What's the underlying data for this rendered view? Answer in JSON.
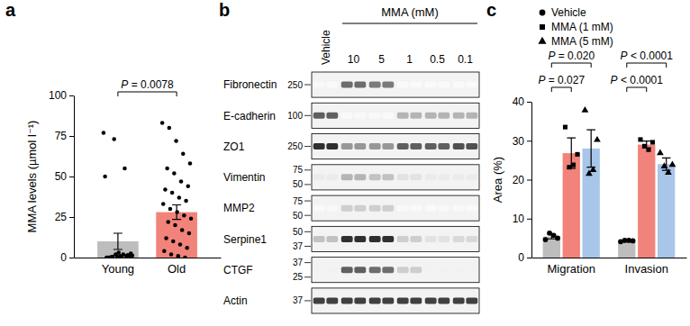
{
  "chart_data": [
    {
      "type": "bar",
      "title": "a",
      "ylabel": "MMA levels (µmol l⁻¹)",
      "categories": [
        "Young",
        "Old"
      ],
      "values": [
        10,
        28
      ],
      "errors": [
        5,
        4.5
      ],
      "colors": [
        "#bdbdbd",
        "#f1837a"
      ],
      "marker": "circle",
      "points": [
        [
          77,
          73,
          55,
          50,
          2,
          1,
          0,
          0.5,
          1.5,
          0,
          3,
          0.8,
          0,
          1,
          2.5,
          0.3,
          0,
          1.2,
          0.6,
          2
        ],
        [
          83,
          80,
          72,
          64,
          58,
          55,
          52,
          47,
          44,
          42,
          40,
          37,
          35,
          33,
          30,
          28,
          26,
          24,
          22,
          20,
          17,
          15,
          12,
          10,
          8,
          6,
          4,
          2,
          1,
          0
        ]
      ],
      "ylim": [
        0,
        100
      ],
      "yticks": [
        0,
        25,
        50,
        75,
        100
      ],
      "annotations": [
        {
          "text": "P = 0.0078",
          "from": "Young",
          "to": "Old"
        }
      ]
    },
    {
      "type": "bar",
      "title": "c",
      "ylabel": "Area (%)",
      "categories": [
        "Migration",
        "Invasion"
      ],
      "series": [
        {
          "name": "Vehicle",
          "color": "#bdbdbd",
          "marker": "circle",
          "values": [
            5.4,
            4.3
          ],
          "errors": [
            0.6,
            0.15
          ],
          "points": [
            [
              4.6,
              5.0,
              5.7,
              6.3
            ],
            [
              4.1,
              4.3,
              4.4,
              4.4
            ]
          ]
        },
        {
          "name": "MMA (1 mM)",
          "color": "#f1837a",
          "marker": "square",
          "values": [
            26.8,
            29
          ],
          "errors": [
            3.9,
            0.9
          ],
          "points": [
            [
              33.5,
              26.5,
              23.8,
              23.2
            ],
            [
              30.3,
              29.6,
              27.7,
              28.6
            ]
          ]
        },
        {
          "name": "MMA (5 mM)",
          "color": "#a8c5ea",
          "marker": "triangle",
          "values": [
            28,
            24
          ],
          "errors": [
            4.8,
            1.6
          ],
          "points": [
            [
              37.8,
              30.2,
              22.5,
              21.5
            ],
            [
              26.8,
              23.8,
              21.8,
              23.4
            ]
          ]
        }
      ],
      "ylim": [
        0,
        40
      ],
      "yticks": [
        0,
        10,
        20,
        30,
        40
      ],
      "legend": "upper left",
      "annotations": [
        {
          "text": "P = 0.027",
          "category": "Migration",
          "from": "Vehicle",
          "to": "MMA (1 mM)"
        },
        {
          "text": "P = 0.020",
          "category": "Migration",
          "from": "Vehicle",
          "to": "MMA (5 mM)"
        },
        {
          "text": "P < 0.0001",
          "category": "Invasion",
          "from": "Vehicle",
          "to": "MMA (1 mM)"
        },
        {
          "text": "P < 0.0001",
          "category": "Invasion",
          "from": "Vehicle",
          "to": "MMA (5 mM)"
        }
      ]
    }
  ],
  "blot": {
    "title": "b",
    "header": "MMA (mM)",
    "lanes": [
      "Vehicle",
      "10",
      "5",
      "1",
      "0.5",
      "0.1"
    ],
    "proteins": [
      {
        "name": "Fibronectin",
        "markers": [
          250
        ],
        "intensity": [
          0.05,
          0.65,
          0.6,
          0.04,
          0.04,
          0.04
        ]
      },
      {
        "name": "E-cadherin",
        "markers": [
          100
        ],
        "intensity": [
          0.7,
          0.05,
          0.05,
          0.4,
          0.4,
          0.4
        ]
      },
      {
        "name": "ZO1",
        "markers": [
          250
        ],
        "intensity": [
          0.85,
          0.5,
          0.5,
          0.7,
          0.7,
          0.75
        ]
      },
      {
        "name": "Vimentin",
        "markers": [
          75,
          50
        ],
        "intensity": [
          0.15,
          0.4,
          0.35,
          0.2,
          0.15,
          0.15
        ]
      },
      {
        "name": "MMP2",
        "markers": [
          75,
          50
        ],
        "intensity": [
          0.05,
          0.3,
          0.3,
          0.05,
          0.05,
          0.05
        ]
      },
      {
        "name": "Serpine1",
        "markers": [
          50,
          37
        ],
        "intensity": [
          0.35,
          0.85,
          0.85,
          0.3,
          0.2,
          0.25
        ]
      },
      {
        "name": "CTGF",
        "markers": [
          37,
          25
        ],
        "intensity": [
          0.1,
          0.7,
          0.65,
          0.3,
          0.1,
          0.1
        ]
      },
      {
        "name": "Actin",
        "markers": [
          37
        ],
        "intensity": [
          0.8,
          0.8,
          0.8,
          0.8,
          0.8,
          0.8
        ]
      }
    ]
  }
}
